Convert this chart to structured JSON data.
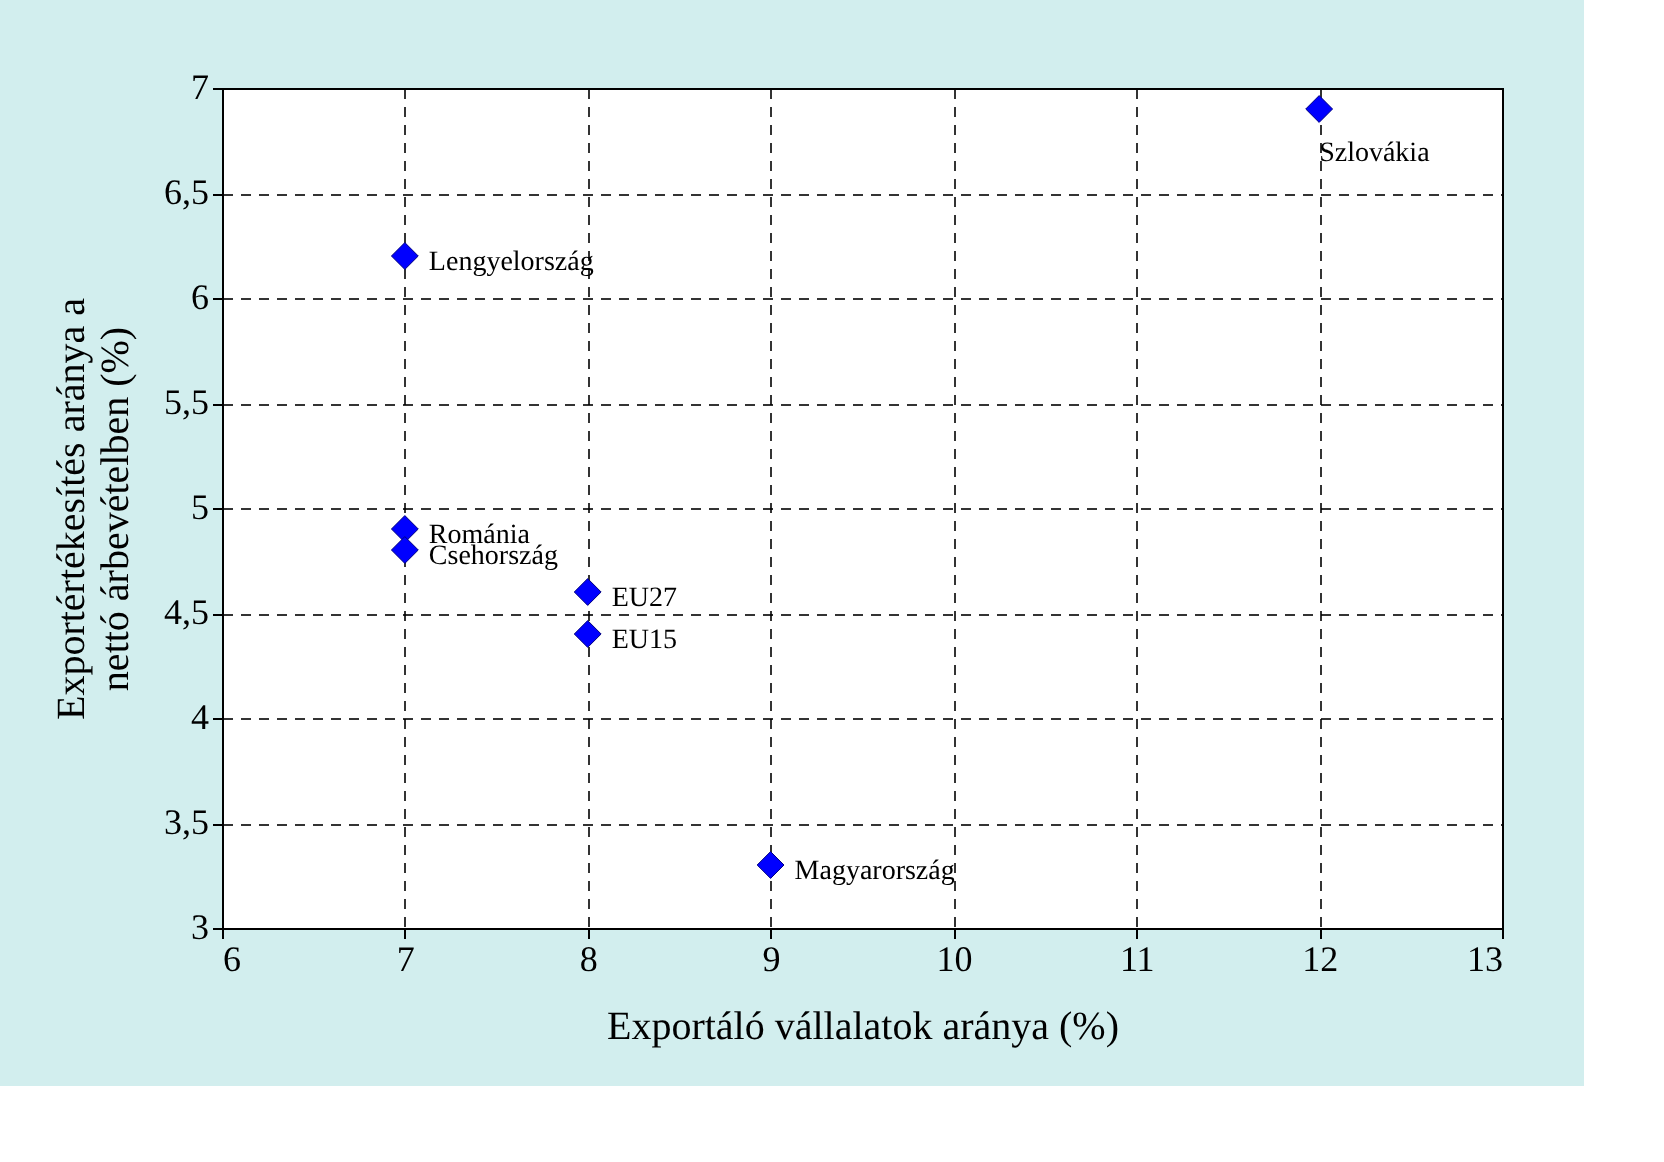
{
  "chart_data": {
    "type": "scatter",
    "xlabel": "Exportáló vállalatok aránya (%)",
    "ylabel": "Exportértékesítés aránya a nettó árbevételben (%)",
    "x": [
      12,
      7,
      7,
      7,
      8,
      8,
      9
    ],
    "series": [
      {
        "color": "#0000ff",
        "values": [
          6.9,
          6.2,
          4.9,
          4.8,
          4.6,
          4.4,
          3.3
        ]
      }
    ],
    "marker": "diamond",
    "grid": true,
    "xlim": [
      6,
      13
    ],
    "xticks": [
      6,
      7,
      8,
      9,
      10,
      11,
      12,
      13
    ],
    "ylim": [
      3,
      7
    ],
    "yticks": [
      3,
      {
        "value": 3.5,
        "label": "3,5"
      },
      4,
      {
        "value": 4.5,
        "label": "4,5"
      },
      5,
      {
        "value": 5.5,
        "label": "5,5"
      },
      6,
      {
        "value": 6.5,
        "label": "6,5"
      },
      7
    ],
    "annotations": [
      {
        "text": "Szlovákia",
        "x": 12,
        "y": 6.9
      },
      {
        "text": "Lengyelország",
        "x": 7,
        "y": 6.2
      },
      {
        "text": "Románia",
        "x": 7,
        "y": 4.9
      },
      {
        "text": "Csehország",
        "x": 7,
        "y": 4.8
      },
      {
        "text": "EU27",
        "x": 8,
        "y": 4.6
      },
      {
        "text": "EU15",
        "x": 8,
        "y": 4.4
      },
      {
        "text": "Magyarország",
        "x": 9,
        "y": 3.3
      }
    ]
  }
}
